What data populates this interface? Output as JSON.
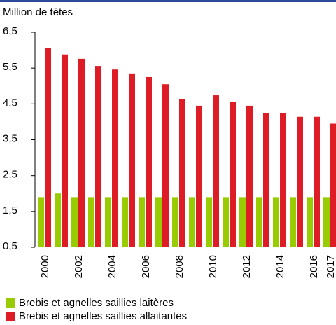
{
  "chart_data": {
    "type": "bar",
    "y_label": "Million de têtes",
    "categories": [
      "2000",
      null,
      "2002",
      null,
      "2004",
      null,
      "2006",
      null,
      "2008",
      null,
      "2010",
      null,
      "2012",
      null,
      "2014",
      null,
      "2016",
      "2017"
    ],
    "series": [
      {
        "name": "Brebis et agnelles saillies laitères",
        "color": "#99cc00",
        "values": [
          1.9,
          2.0,
          1.9,
          1.9,
          1.9,
          1.9,
          1.9,
          1.9,
          1.9,
          1.9,
          1.9,
          1.9,
          1.9,
          1.9,
          1.9,
          1.9,
          1.9,
          1.9
        ]
      },
      {
        "name": "Brebis et agnelles saillies allaitantes",
        "color": "#dd1c25",
        "values": [
          6.07,
          5.88,
          5.76,
          5.56,
          5.46,
          5.35,
          5.25,
          5.05,
          4.64,
          4.45,
          4.74,
          4.55,
          4.45,
          4.25,
          4.25,
          4.14,
          4.14,
          3.95
        ]
      }
    ],
    "ylim": [
      0.5,
      6.5
    ],
    "yticks": [
      {
        "value": 0.5,
        "label": "0,5"
      },
      {
        "value": 1.5,
        "label": "1,5"
      },
      {
        "value": 2.5,
        "label": "2,5"
      },
      {
        "value": 3.5,
        "label": "3,5"
      },
      {
        "value": 4.5,
        "label": "4,5"
      },
      {
        "value": 5.5,
        "label": "5,5"
      },
      {
        "value": 6.5,
        "label": "6,5"
      }
    ]
  }
}
